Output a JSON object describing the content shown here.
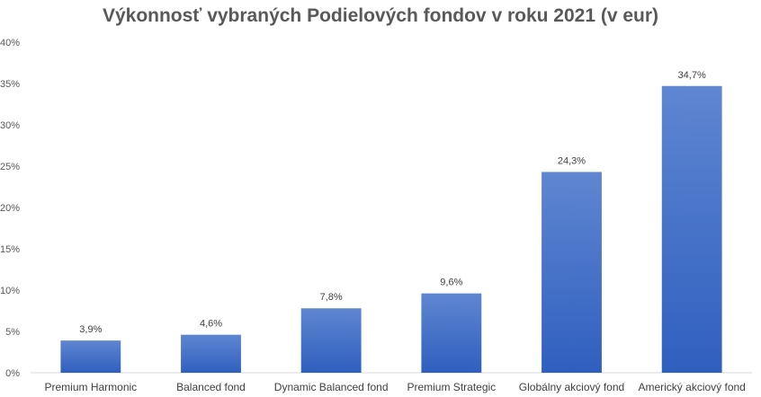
{
  "chart_data": {
    "type": "bar",
    "title": "Výkonnosť vybraných Podielových fondov v roku 2021 (v eur)",
    "categories": [
      "Premium Harmonic",
      "Balanced fond",
      "Dynamic Balanced fond",
      "Premium Strategic",
      "Globálny akciový fond",
      "Americký akciový fond"
    ],
    "values": [
      3.9,
      4.6,
      7.8,
      9.6,
      24.3,
      34.7
    ],
    "data_labels": [
      "3,9%",
      "4,6%",
      "7,8%",
      "9,6%",
      "24,3%",
      "34,7%"
    ],
    "ylim": [
      0,
      40
    ],
    "y_ticks": [
      0,
      5,
      10,
      15,
      20,
      25,
      30,
      35,
      40
    ],
    "y_tick_labels": [
      "0%",
      "5%",
      "10%",
      "15%",
      "20%",
      "25%",
      "30%",
      "35%",
      "40%"
    ],
    "grid": false,
    "legend": "none",
    "bar_color_top": "#5f86d1",
    "bar_color_bottom": "#2f5fbf",
    "axis_color": "#d9d9d9"
  }
}
